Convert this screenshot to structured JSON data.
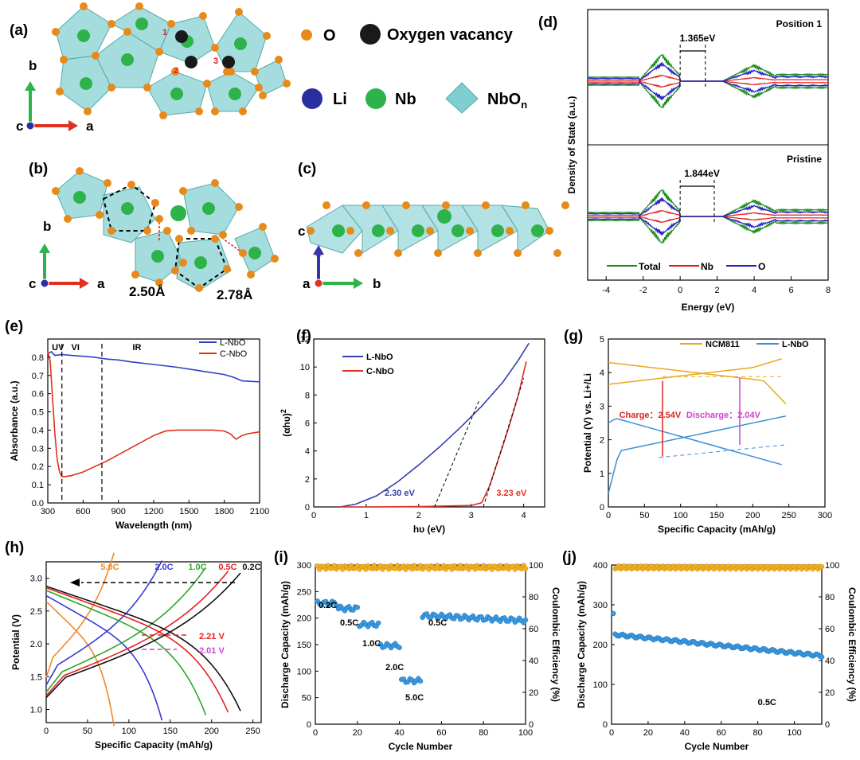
{
  "panel_labels": {
    "a": "(a)",
    "b": "(b)",
    "c": "(c)",
    "d": "(d)",
    "e": "(e)",
    "f": "(f)",
    "g": "(g)",
    "h": "(h)",
    "i": "(i)",
    "j": "(j)"
  },
  "crystal": {
    "legend": {
      "O": "O",
      "vacancy": "Oxygen vacancy",
      "Li": "Li",
      "Nb": "Nb",
      "NbOn": "NbO",
      "NbOn_sub": "n"
    },
    "positions": [
      "1",
      "2",
      "3"
    ],
    "axes_a": {
      "up": "b",
      "right": "a",
      "origin": "c"
    },
    "axes_b": {
      "up": "b",
      "right": "a",
      "origin": "c"
    },
    "axes_c": {
      "up": "c",
      "right": "b",
      "origin": "a"
    },
    "dist1": "2.50Å",
    "dist2": "2.78Å",
    "colors": {
      "O": "#e88a1a",
      "vacancy": "#1a1a1a",
      "Li": "#2a2fa0",
      "Nb": "#2db34a",
      "NbOn": "#7fcfd0"
    }
  },
  "chart_data": [
    {
      "id": "d",
      "type": "line",
      "ylabel": "Density of State (a.u.)",
      "xlabel": "Energy (eV)",
      "xlim": [
        -5,
        8
      ],
      "xticks": [
        -4,
        -2,
        0,
        2,
        4,
        6,
        8
      ],
      "subplots": [
        {
          "title": "Position 1",
          "gap_label": "1.365eV",
          "gap": [
            0,
            1.365
          ]
        },
        {
          "title": "Pristine",
          "gap_label": "1.844eV",
          "gap": [
            0,
            1.844
          ]
        }
      ],
      "series": [
        {
          "name": "Total",
          "color": "#1a8a1a"
        },
        {
          "name": "Nb",
          "color": "#e02020"
        },
        {
          "name": "O",
          "color": "#2020c0"
        }
      ]
    },
    {
      "id": "e",
      "type": "line",
      "xlabel": "Wavelength (nm)",
      "ylabel": "Absorbance (a.u.)",
      "xlim": [
        300,
        2100
      ],
      "ylim": [
        0,
        0.9
      ],
      "xticks": [
        300,
        600,
        900,
        1200,
        1500,
        1800,
        2100
      ],
      "yticks": [
        0.0,
        0.1,
        0.2,
        0.3,
        0.4,
        0.5,
        0.6,
        0.7,
        0.8
      ],
      "regions": [
        "UV",
        "VI",
        "IR"
      ],
      "dividers": [
        420,
        760
      ],
      "series": [
        {
          "name": "L-NbO",
          "color": "#3040c0",
          "x": [
            300,
            330,
            360,
            420,
            500,
            600,
            700,
            800,
            900,
            1000,
            1200,
            1400,
            1600,
            1800,
            1880,
            1950,
            2100
          ],
          "y": [
            0.82,
            0.83,
            0.81,
            0.815,
            0.81,
            0.805,
            0.8,
            0.79,
            0.785,
            0.775,
            0.76,
            0.745,
            0.725,
            0.705,
            0.69,
            0.67,
            0.665
          ]
        },
        {
          "name": "C-NbO",
          "color": "#e03020",
          "x": [
            300,
            320,
            340,
            360,
            380,
            400,
            420,
            450,
            500,
            600,
            700,
            800,
            900,
            1000,
            1100,
            1200,
            1300,
            1400,
            1500,
            1600,
            1700,
            1800,
            1850,
            1900,
            1950,
            2000,
            2100
          ],
          "y": [
            0.83,
            0.78,
            0.58,
            0.38,
            0.24,
            0.17,
            0.145,
            0.145,
            0.15,
            0.17,
            0.2,
            0.23,
            0.265,
            0.3,
            0.335,
            0.37,
            0.395,
            0.4,
            0.4,
            0.4,
            0.4,
            0.395,
            0.38,
            0.35,
            0.37,
            0.38,
            0.39
          ]
        }
      ]
    },
    {
      "id": "f",
      "type": "line",
      "xlabel": "hυ (eV)",
      "ylabel": "(αhυ)",
      "ylabel_sup": "2",
      "xlim": [
        0,
        4.4
      ],
      "ylim": [
        0,
        12
      ],
      "xticks": [
        0,
        1,
        2,
        3,
        4
      ],
      "yticks": [
        0,
        2,
        4,
        6,
        8,
        10,
        12
      ],
      "series": [
        {
          "name": "L-NbO",
          "color": "#3040b0",
          "x": [
            0.5,
            0.8,
            1.2,
            1.6,
            2.0,
            2.4,
            2.8,
            3.2,
            3.6,
            3.9,
            4.1
          ],
          "y": [
            0.0,
            0.2,
            0.8,
            1.8,
            3.0,
            4.3,
            5.7,
            7.2,
            8.9,
            10.5,
            11.7
          ]
        },
        {
          "name": "C-NbO",
          "color": "#e03020",
          "x": [
            0.5,
            1.0,
            2.0,
            3.0,
            3.2,
            3.35,
            3.5,
            3.7,
            3.9,
            4.05
          ],
          "y": [
            0.0,
            0.0,
            0.02,
            0.1,
            0.3,
            1.5,
            3.2,
            5.5,
            8.0,
            10.4
          ]
        }
      ],
      "annotations": [
        {
          "text": "2.30 eV",
          "x": 2.3,
          "color": "#3040b0"
        },
        {
          "text": "3.23 eV",
          "x": 3.23,
          "color": "#e03020"
        }
      ]
    },
    {
      "id": "g",
      "type": "line",
      "xlabel": "Specific Capacity (mAh/g)",
      "ylabel": "Potential (V) vs. Li+/Li",
      "xlim": [
        0,
        300
      ],
      "ylim": [
        0,
        5
      ],
      "xticks": [
        0,
        50,
        100,
        150,
        200,
        250,
        300
      ],
      "yticks": [
        0,
        1,
        2,
        3,
        4,
        5
      ],
      "series": [
        {
          "name": "NCM811",
          "color": "#e8a820"
        },
        {
          "name": "L-NbO",
          "color": "#3a8fd8"
        }
      ],
      "charge_label": "Charge：2.54V",
      "discharge_label": "Discharge：2.04V"
    },
    {
      "id": "h",
      "type": "line",
      "xlabel": "Specific Capacity (mAh/g)",
      "ylabel": "Potential (V)",
      "xlim": [
        0,
        260
      ],
      "ylim": [
        0.8,
        3.25
      ],
      "xticks": [
        0,
        50,
        100,
        150,
        200,
        250
      ],
      "yticks": [
        1.0,
        1.5,
        2.0,
        2.5,
        3.0
      ],
      "series": [
        {
          "name": "5.0C",
          "color": "#f08a28",
          "cap": 82
        },
        {
          "name": "2.0C",
          "color": "#3a3ad0",
          "cap": 140
        },
        {
          "name": "1.0C",
          "color": "#2aa82a",
          "cap": 193
        },
        {
          "name": "0.5C",
          "color": "#e82020",
          "cap": 220
        },
        {
          "name": "0.2C",
          "color": "#111111",
          "cap": 235
        }
      ],
      "annotations": [
        {
          "text": "2.21 V",
          "color": "#e82020"
        },
        {
          "text": "2.01 V",
          "color": "#d040d0"
        }
      ]
    },
    {
      "id": "i",
      "type": "scatter",
      "xlabel": "Cycle Number",
      "ylabel": "Discharge Capacity (mAh/g)",
      "y2label": "Coulombic Efficiency (%)",
      "xlim": [
        0,
        100
      ],
      "ylim": [
        0,
        300
      ],
      "y2lim": [
        0,
        100
      ],
      "xticks": [
        0,
        20,
        40,
        60,
        80,
        100
      ],
      "yticks": [
        0,
        50,
        100,
        150,
        200,
        250,
        300
      ],
      "y2ticks": [
        0,
        20,
        40,
        60,
        80,
        100
      ],
      "rate_segments": [
        {
          "label": "0.2C",
          "from": 1,
          "to": 10,
          "value": 228
        },
        {
          "label": "0.5C",
          "from": 11,
          "to": 20,
          "value": 218
        },
        {
          "label": "1.0C",
          "from": 21,
          "to": 30,
          "value": 188
        },
        {
          "label": "2.0C",
          "from": 31,
          "to": 40,
          "value": 148
        },
        {
          "label": "5.0C",
          "from": 41,
          "to": 50,
          "value": 82
        },
        {
          "label": "0.5C",
          "from": 51,
          "to": 100,
          "value": 205
        }
      ],
      "ce": 98.5,
      "colors": {
        "capacity": "#3a9ae0",
        "ce": "#f0b020"
      }
    },
    {
      "id": "j",
      "type": "scatter",
      "xlabel": "Cycle Number",
      "ylabel": "Discharge Capacity (mAh/g)",
      "y2label": "Coulombic Efficiency (%)",
      "xlim": [
        0,
        115
      ],
      "ylim": [
        0,
        400
      ],
      "y2lim": [
        0,
        100
      ],
      "xticks": [
        0,
        20,
        40,
        60,
        80,
        100
      ],
      "yticks": [
        0,
        100,
        200,
        300,
        400
      ],
      "y2ticks": [
        0,
        20,
        40,
        60,
        80,
        100
      ],
      "rate_label": "0.5C",
      "first_capacity": 278,
      "start_capacity": 225,
      "end_capacity": 172,
      "ce": 98.5,
      "colors": {
        "capacity": "#3a9ae0",
        "ce": "#f0b020"
      }
    }
  ]
}
